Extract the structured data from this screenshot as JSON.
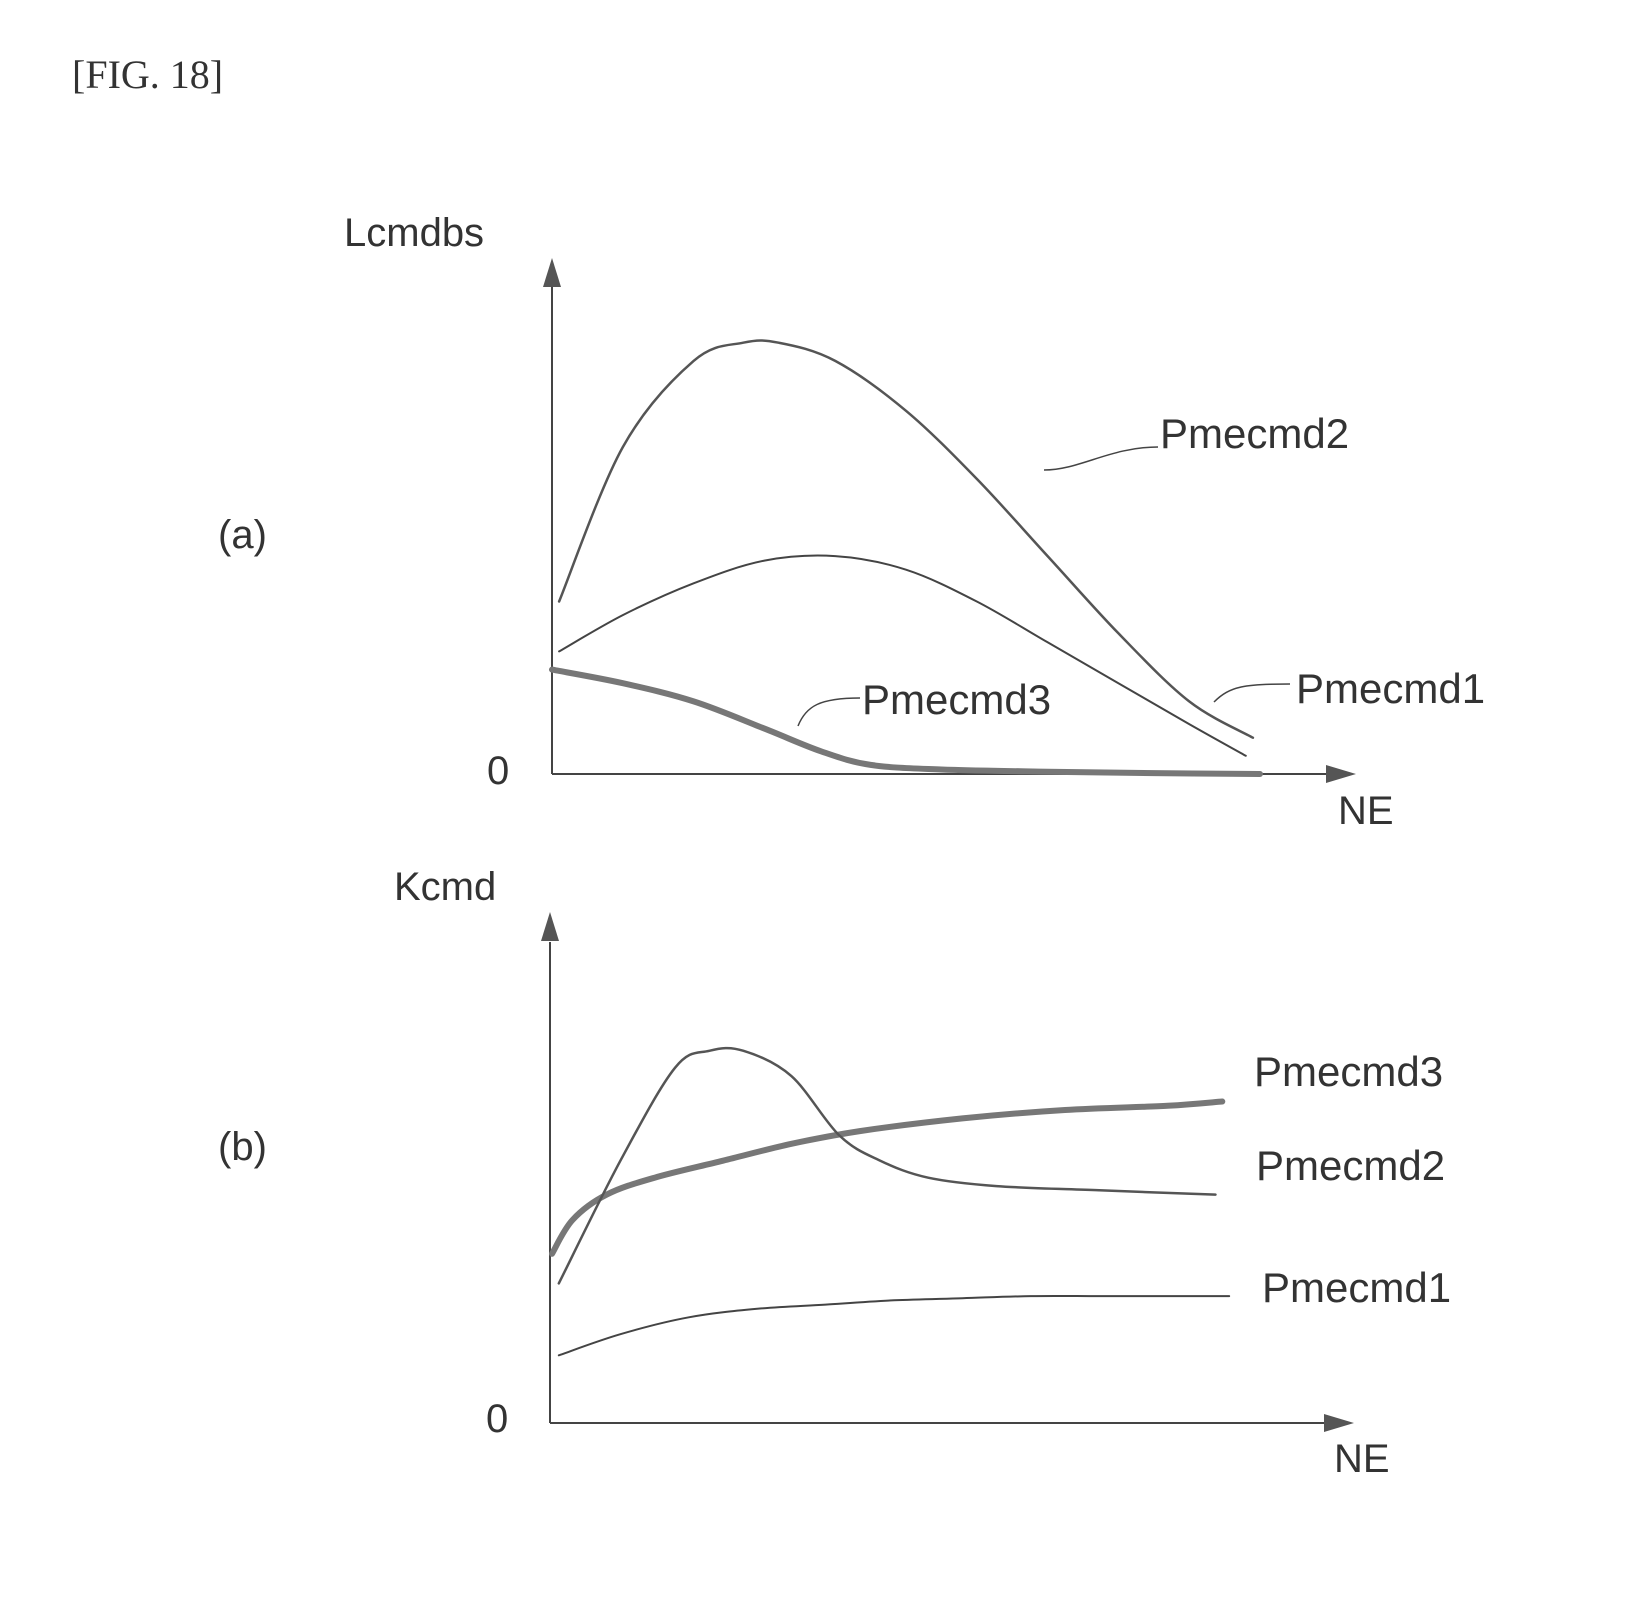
{
  "figure_label": "[FIG. 18]",
  "chart_data": [
    {
      "type": "line",
      "panel_label": "(a)",
      "ylabel": "Lcmdbs",
      "xlabel": "NE",
      "origin_label": "0",
      "xlim": [
        0,
        100
      ],
      "ylim": [
        0,
        100
      ],
      "series": [
        {
          "name": "Pmecmd2",
          "color": "#555555",
          "x": [
            1,
            10,
            20,
            27,
            32,
            40,
            50,
            60,
            70,
            80,
            90,
            99
          ],
          "y": [
            38,
            72,
            91,
            95,
            95,
            91,
            80,
            65,
            48,
            31,
            16,
            8
          ]
        },
        {
          "name": "Pmecmd1",
          "color": "#444444",
          "x": [
            1,
            10,
            20,
            30,
            40,
            50,
            60,
            70,
            80,
            90,
            98
          ],
          "y": [
            27,
            35,
            42,
            47,
            48,
            45,
            38,
            29,
            20,
            11,
            4
          ]
        },
        {
          "name": "Pmecmd3",
          "color": "#777777",
          "x": [
            0,
            10,
            20,
            30,
            38,
            45,
            55,
            70,
            85,
            100
          ],
          "y": [
            23,
            20,
            16,
            10,
            5,
            2,
            1,
            0.5,
            0.2,
            0
          ]
        }
      ]
    },
    {
      "type": "line",
      "panel_label": "(b)",
      "ylabel": "Kcmd",
      "xlabel": "NE",
      "origin_label": "0",
      "xlim": [
        0,
        100
      ],
      "ylim": [
        0,
        100
      ],
      "series": [
        {
          "name": "Pmecmd3",
          "color": "#777777",
          "x": [
            0,
            3,
            8,
            15,
            25,
            35,
            45,
            60,
            75,
            90,
            98
          ],
          "y": [
            40,
            48,
            54,
            58,
            62,
            66,
            69,
            72,
            74,
            75,
            76
          ]
        },
        {
          "name": "Pmecmd2",
          "color": "#555555",
          "x": [
            1,
            10,
            18,
            23,
            28,
            35,
            42,
            48,
            55,
            65,
            80,
            97
          ],
          "y": [
            33,
            62,
            84,
            88,
            88,
            82,
            68,
            62,
            58,
            56,
            55,
            54
          ]
        },
        {
          "name": "Pmecmd1",
          "color": "#444444",
          "x": [
            1,
            10,
            20,
            30,
            40,
            50,
            60,
            70,
            80,
            90,
            99
          ],
          "y": [
            16,
            21,
            25,
            27,
            28,
            29,
            29.5,
            30,
            30,
            30,
            30
          ]
        }
      ]
    }
  ]
}
